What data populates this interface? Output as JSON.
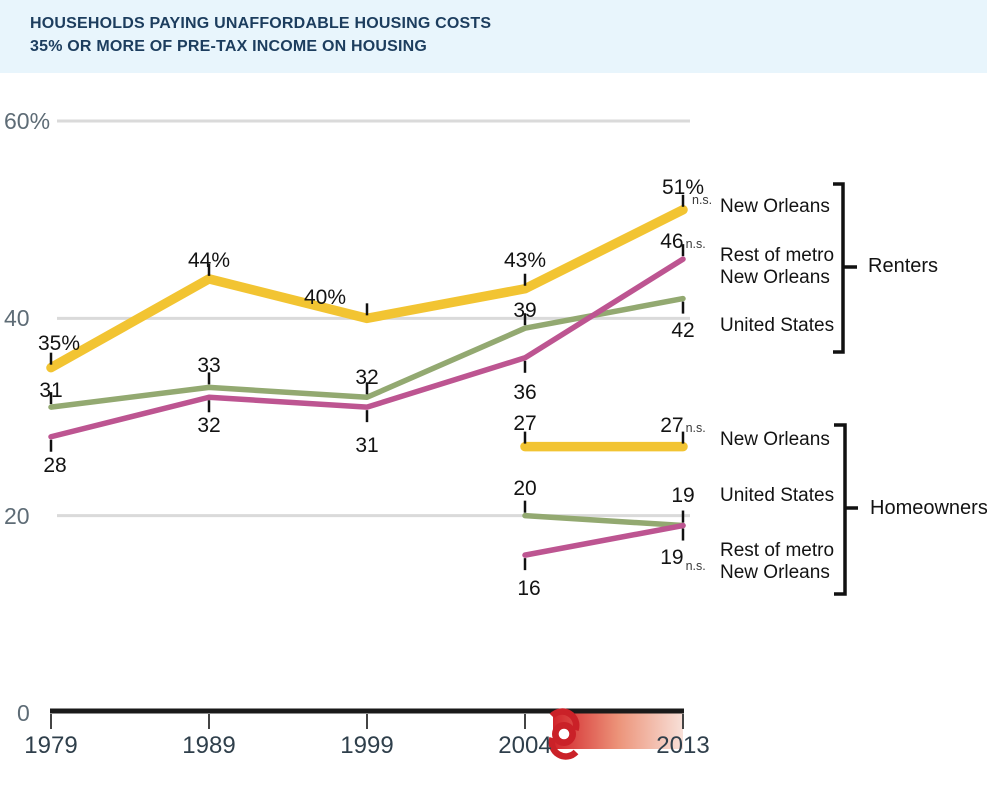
{
  "header": {
    "title_line1": "HOUSEHOLDS PAYING UNAFFORDABLE HOUSING COSTS",
    "title_line2": "35% OR MORE OF PRE-TAX INCOME ON HOUSING"
  },
  "colors": {
    "header_bg": "#E8F5FC",
    "title_text": "#1C3D5E",
    "new_orleans_line": "#F2C432",
    "rest_of_metro_line": "#BD5591",
    "united_states_line": "#93A971",
    "gridline": "#DADADA",
    "axis": "#1A1A1A",
    "hurricane_red": "#CA2128",
    "gradient_start": "#D2242B",
    "gradient_end": "#F8E0D8"
  },
  "y_axis": {
    "ticks": [
      {
        "label": "60%",
        "value": 60
      },
      {
        "label": "40",
        "value": 40
      },
      {
        "label": "20",
        "value": 20
      },
      {
        "label": "0",
        "value": 0
      }
    ]
  },
  "x_axis": {
    "years": [
      "1979",
      "1989",
      "1999",
      "2004",
      "2013"
    ]
  },
  "chart_data": {
    "type": "line",
    "x": [
      1979,
      1989,
      1999,
      2004,
      2013
    ],
    "ylim": [
      0,
      60
    ],
    "y_gridlines": [
      60,
      40,
      20
    ],
    "grid": true,
    "ns_label": "n.s.",
    "legend_position": "right",
    "series": [
      {
        "group": "Renters",
        "name": "United States",
        "color": "#93A971",
        "stroke_width": 5.5,
        "x": [
          1979,
          1989,
          1999,
          2004,
          2013
        ],
        "values": [
          31,
          33,
          32,
          39,
          42
        ],
        "point_labels": [
          {
            "text": "31",
            "side": "above",
            "dy": -27
          },
          {
            "text": "33",
            "side": "above",
            "dy": -32
          },
          {
            "text": "32",
            "side": "above",
            "dy": -30
          },
          {
            "text": "39",
            "side": "above",
            "dy": -28
          },
          {
            "text": "42",
            "side": "below",
            "dy": 21
          }
        ]
      },
      {
        "group": "Renters",
        "name": "Rest of metro New Orleans",
        "color": "#BD5591",
        "stroke_width": 5.5,
        "x": [
          1979,
          1989,
          1999,
          2004,
          2013
        ],
        "values": [
          28,
          32,
          31,
          36,
          46
        ],
        "point_labels": [
          {
            "text": "28",
            "side": "below",
            "dy": 18,
            "dx": 4
          },
          {
            "text": "32",
            "side": "below",
            "dy": 18
          },
          {
            "text": "31",
            "side": "below",
            "dy": 28
          },
          {
            "text": "36",
            "side": "below",
            "dy": 24
          },
          {
            "text": "46",
            "side": "above",
            "dy": -28,
            "ns": "right"
          }
        ]
      },
      {
        "group": "Renters",
        "name": "New Orleans",
        "color": "#F2C432",
        "stroke_width": 9.5,
        "x": [
          1979,
          1989,
          1999,
          2004,
          2013
        ],
        "values": [
          35,
          44,
          40,
          43,
          51
        ],
        "point_labels": [
          {
            "text": "35%",
            "side": "above",
            "dy": -35,
            "dx": 8
          },
          {
            "text": "44%",
            "side": "above",
            "dy": -29
          },
          {
            "text": "40%",
            "side": "above",
            "dy": -31,
            "dx": -42
          },
          {
            "text": "43%",
            "side": "above",
            "dy": -39
          },
          {
            "text": "51%",
            "side": "above",
            "dy": -33,
            "ns": "below"
          }
        ]
      },
      {
        "group": "Homeowners",
        "name": "United States",
        "color": "#93A971",
        "stroke_width": 5.5,
        "x": [
          2004,
          2013
        ],
        "values": [
          20,
          19
        ],
        "point_labels": [
          {
            "text": "20",
            "side": "above",
            "dy": -38
          },
          {
            "text": "19",
            "side": "above",
            "dy": -41
          }
        ]
      },
      {
        "group": "Homeowners",
        "name": "Rest of metro New Orleans",
        "color": "#BD5591",
        "stroke_width": 5.5,
        "x": [
          2004,
          2013
        ],
        "values": [
          16,
          19
        ],
        "point_labels": [
          {
            "text": "16",
            "side": "below",
            "dy": 23,
            "dx": 4
          },
          {
            "text": "19",
            "side": "below",
            "dy": 21,
            "ns": "sub"
          }
        ]
      },
      {
        "group": "Homeowners",
        "name": "New Orleans",
        "color": "#F2C432",
        "stroke_width": 9.5,
        "x": [
          2004,
          2013
        ],
        "values": [
          27,
          27
        ],
        "point_labels": [
          {
            "text": "27",
            "side": "above",
            "dy": -34
          },
          {
            "text": "27",
            "side": "above",
            "dy": -32,
            "ns": "right"
          }
        ]
      }
    ]
  },
  "legend": {
    "renters": {
      "title": "Renters",
      "items": [
        {
          "label": "New Orleans"
        },
        {
          "label": "Rest of metro\nNew Orleans"
        },
        {
          "label": "United States"
        }
      ]
    },
    "homeowners": {
      "title": "Homeowners",
      "items": [
        {
          "label": "New Orleans"
        },
        {
          "label": "United States"
        },
        {
          "label": "Rest of metro\nNew Orleans"
        }
      ]
    }
  }
}
